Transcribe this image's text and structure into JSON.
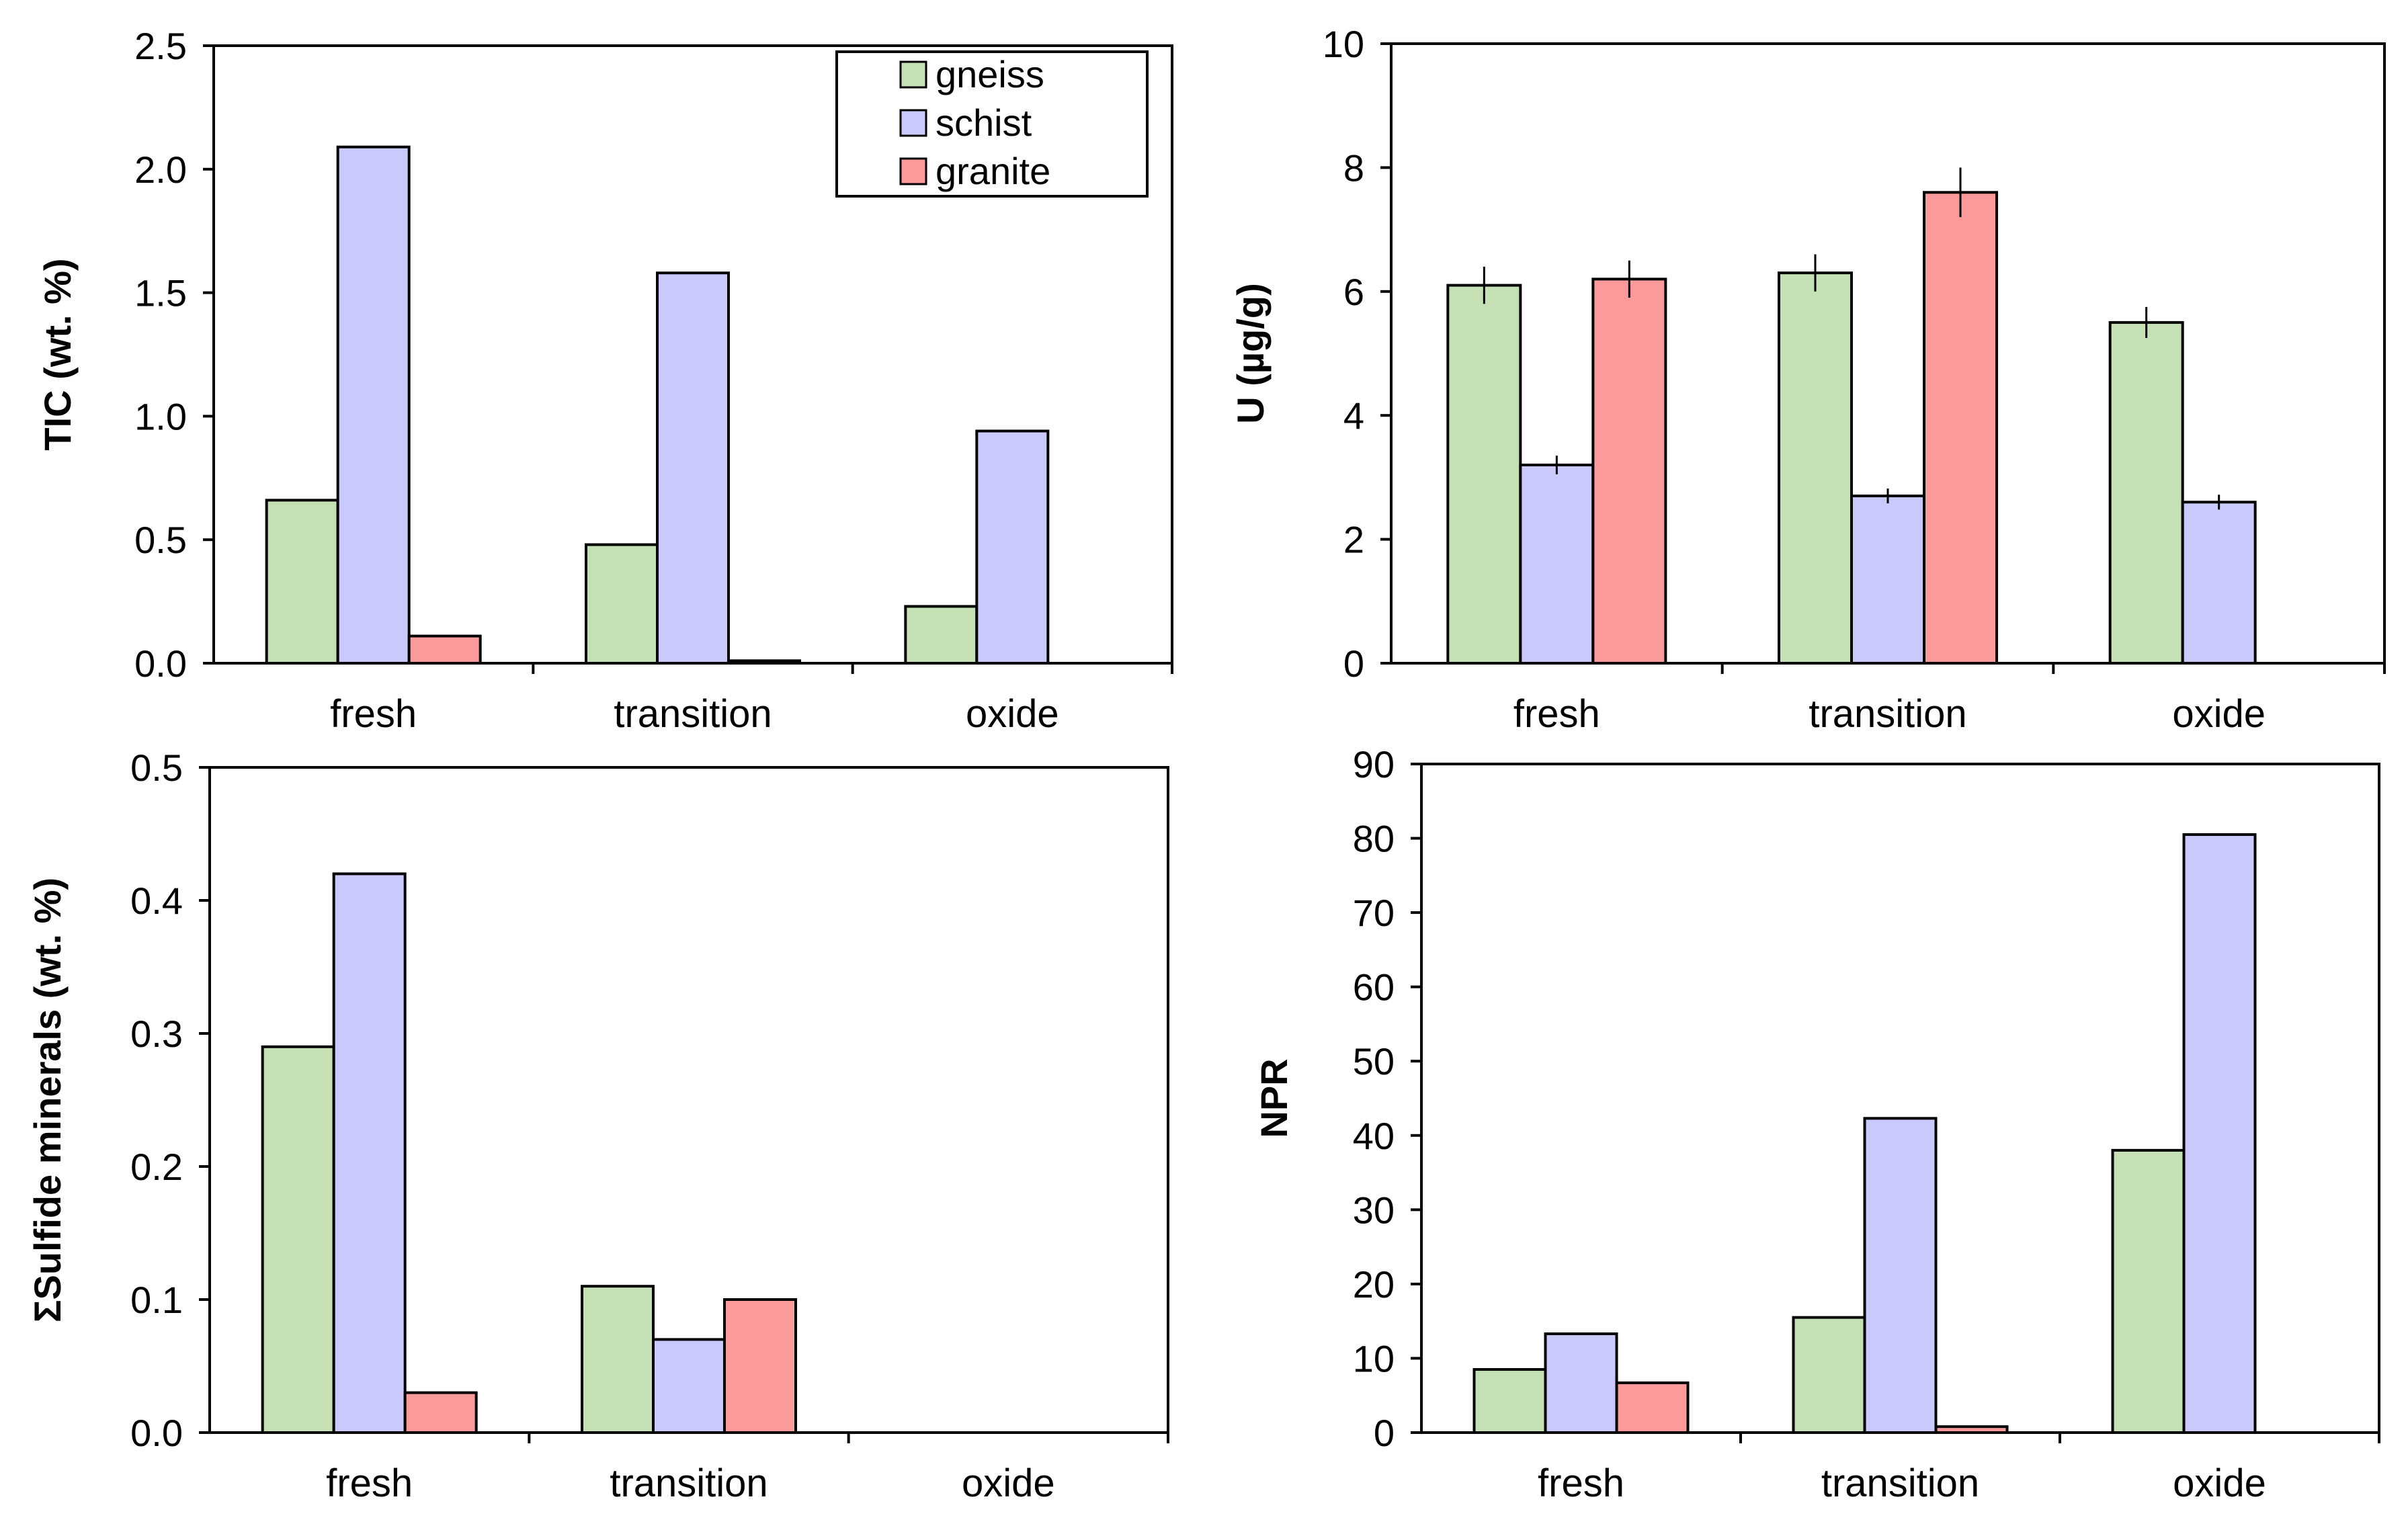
{
  "legend": {
    "entries": [
      {
        "label": "gneiss",
        "color": "#c5e0b4"
      },
      {
        "label": "schist",
        "color": "#c9c9fb"
      },
      {
        "label": "granite",
        "color": "#fa9a9a"
      }
    ]
  },
  "chart_data": [
    {
      "type": "bar",
      "panel": "top-left",
      "ylabel": "TIC (wt. %)",
      "xlabel": "",
      "title": "",
      "categories": [
        "fresh",
        "transition",
        "oxide"
      ],
      "ylim": [
        0,
        2.5
      ],
      "yticks": [
        "0.0",
        "0.5",
        "1.0",
        "1.5",
        "2.0",
        "2.5"
      ],
      "legend_position": "top-right",
      "series": [
        {
          "name": "gneiss",
          "values": [
            0.66,
            0.48,
            0.23
          ]
        },
        {
          "name": "schist",
          "values": [
            2.09,
            1.58,
            0.94
          ]
        },
        {
          "name": "granite",
          "values": [
            0.11,
            0.01,
            0
          ]
        }
      ]
    },
    {
      "type": "bar",
      "panel": "top-right",
      "ylabel": "U (µg/g)",
      "xlabel": "",
      "title": "",
      "categories": [
        "fresh",
        "transition",
        "oxide"
      ],
      "ylim": [
        0,
        10
      ],
      "yticks": [
        "0",
        "2",
        "4",
        "6",
        "8",
        "10"
      ],
      "series": [
        {
          "name": "gneiss",
          "values": [
            6.1,
            6.3,
            5.5
          ],
          "errors": [
            0.3,
            0.3,
            0.25
          ]
        },
        {
          "name": "schist",
          "values": [
            3.2,
            2.7,
            2.6
          ],
          "errors": [
            0.15,
            0.12,
            0.12
          ]
        },
        {
          "name": "granite",
          "values": [
            6.2,
            7.6,
            null
          ],
          "errors": [
            0.3,
            0.4,
            null
          ]
        }
      ]
    },
    {
      "type": "bar",
      "panel": "bottom-left",
      "ylabel": "ΣSulfide minerals (wt. %)",
      "xlabel": "",
      "title": "",
      "categories": [
        "fresh",
        "transition",
        "oxide"
      ],
      "ylim": [
        0,
        0.5
      ],
      "yticks": [
        "0.0",
        "0.1",
        "0.2",
        "0.3",
        "0.4",
        "0.5"
      ],
      "series": [
        {
          "name": "gneiss",
          "values": [
            0.29,
            0.11,
            null
          ]
        },
        {
          "name": "schist",
          "values": [
            0.42,
            0.07,
            null
          ]
        },
        {
          "name": "granite",
          "values": [
            0.03,
            0.1,
            null
          ]
        }
      ]
    },
    {
      "type": "bar",
      "panel": "bottom-right",
      "ylabel": "NPR",
      "xlabel": "",
      "title": "",
      "categories": [
        "fresh",
        "transition",
        "oxide"
      ],
      "ylim": [
        0,
        90
      ],
      "yticks": [
        "0",
        "10",
        "20",
        "30",
        "40",
        "50",
        "60",
        "70",
        "80",
        "90"
      ],
      "series": [
        {
          "name": "gneiss",
          "values": [
            8.5,
            15.5,
            38
          ]
        },
        {
          "name": "schist",
          "values": [
            13.3,
            42.3,
            80.5
          ]
        },
        {
          "name": "granite",
          "values": [
            6.7,
            0.8,
            null
          ]
        }
      ]
    }
  ]
}
